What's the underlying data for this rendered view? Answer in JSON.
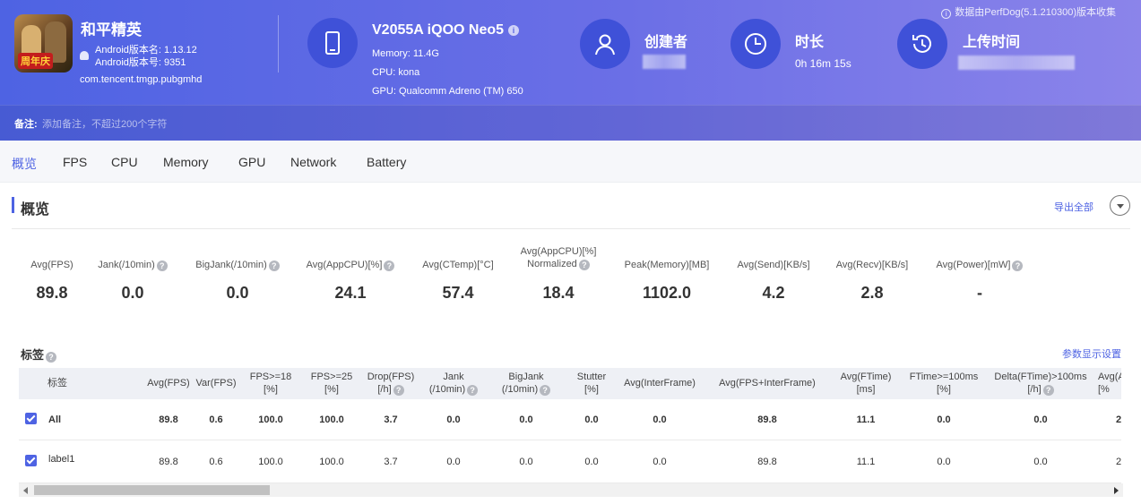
{
  "header": {
    "data_note": "数据由PerfDog(5.1.210300)版本收集",
    "game_name": "和平精英",
    "game_icon_tag": "周年庆",
    "android_version_name": "Android版本名: 1.13.12",
    "android_version_code": "Android版本号: 9351",
    "package_name": "com.tencent.tmgp.pubgmhd",
    "device_name": "V2055A iQOO Neo5",
    "device_info_icon": "i",
    "memory": "Memory: 11.4G",
    "cpu": "CPU: kona",
    "gpu": "GPU: Qualcomm Adreno (TM) 650",
    "creator_label": "创建者",
    "duration_label": "时长",
    "duration_value": "0h 16m 15s",
    "upload_label": "上传时间",
    "note_label": "备注:",
    "note_placeholder": "添加备注，不超过200个字符"
  },
  "tabs": [
    "概览",
    "FPS",
    "CPU",
    "Memory",
    "GPU",
    "Network",
    "Battery"
  ],
  "overview": {
    "title": "概览",
    "export_label": "导出全部",
    "help_glyph": "?",
    "metrics": [
      {
        "label": "Avg(FPS)",
        "value": "89.8"
      },
      {
        "label": "Jank(/10min)",
        "value": "0.0"
      },
      {
        "label": "BigJank(/10min)",
        "value": "0.0"
      },
      {
        "label": "Avg(AppCPU)[%]",
        "value": "24.1"
      },
      {
        "label": "Avg(CTemp)[°C]",
        "value": "57.4"
      },
      {
        "label": "Avg(AppCPU)[%]",
        "label2": "Normalized",
        "value": "18.4"
      },
      {
        "label": "Peak(Memory)[MB]",
        "value": "1102.0"
      },
      {
        "label": "Avg(Send)[KB/s]",
        "value": "4.2"
      },
      {
        "label": "Avg(Recv)[KB/s]",
        "value": "2.8"
      },
      {
        "label": "Avg(Power)[mW]",
        "value": "-"
      }
    ]
  },
  "tags": {
    "title": "标签",
    "param_settings": "参数显示设置",
    "columns": [
      {
        "l1": "标签"
      },
      {
        "l1": "Avg(FPS)"
      },
      {
        "l1": "Var(FPS)"
      },
      {
        "l1": "FPS>=18",
        "l2": "[%]"
      },
      {
        "l1": "FPS>=25",
        "l2": "[%]"
      },
      {
        "l1": "Drop(FPS)",
        "l2": "[/h]"
      },
      {
        "l1": "Jank",
        "l2": "(/10min)"
      },
      {
        "l1": "BigJank",
        "l2": "(/10min)"
      },
      {
        "l1": "Stutter",
        "l2": "[%]"
      },
      {
        "l1": "Avg(InterFrame)"
      },
      {
        "l1": "Avg(FPS+InterFrame)"
      },
      {
        "l1": "Avg(FTime)",
        "l2": "[ms]"
      },
      {
        "l1": "FTime>=100ms",
        "l2": "[%]"
      },
      {
        "l1": "Delta(FTime)>100ms",
        "l2": "[/h]"
      },
      {
        "l1": "Avg(A",
        "l2": "[%"
      }
    ],
    "rows": [
      {
        "cells": [
          "All",
          "89.8",
          "0.6",
          "100.0",
          "100.0",
          "3.7",
          "0.0",
          "0.0",
          "0.0",
          "0.0",
          "89.8",
          "11.1",
          "0.0",
          "0.0",
          "2"
        ]
      },
      {
        "cells": [
          "label1",
          "89.8",
          "0.6",
          "100.0",
          "100.0",
          "3.7",
          "0.0",
          "0.0",
          "0.0",
          "0.0",
          "89.8",
          "11.1",
          "0.0",
          "0.0",
          "2"
        ]
      }
    ]
  }
}
